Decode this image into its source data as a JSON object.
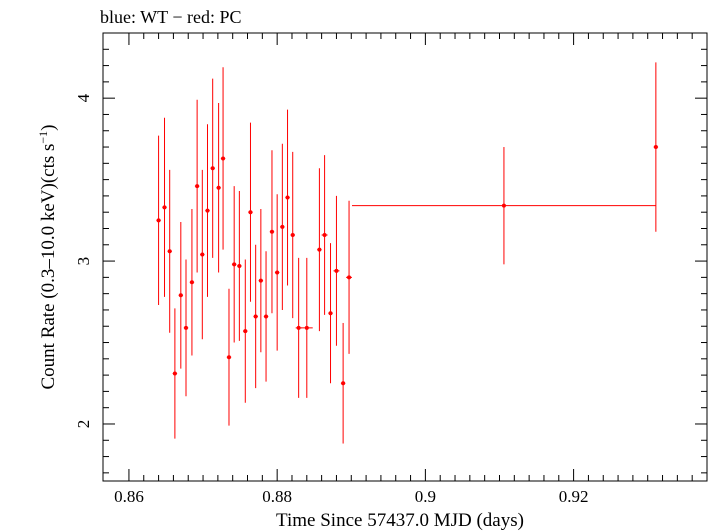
{
  "chart_data": {
    "type": "scatter",
    "title": "blue: WT − red: PC",
    "xlabel": "Time Since 57437.0 MJD (days)",
    "ylabel_main": "Count Rate (0.3–10.0 keV)(cts s",
    "ylabel_sup": "−1",
    "ylabel_close": ")",
    "xlim": [
      0.8565,
      0.938
    ],
    "ylim": [
      1.65,
      4.4
    ],
    "xticks": [
      0.86,
      0.88,
      0.9,
      0.92
    ],
    "xtick_labels": [
      "0.86",
      "0.88",
      "0.9",
      "0.92"
    ],
    "yticks": [
      2,
      3,
      4
    ],
    "ytick_labels": [
      "2",
      "3",
      "4"
    ],
    "grid": false,
    "series": [
      {
        "name": "PC",
        "color": "#ff0000",
        "points": [
          {
            "x": 0.864,
            "xerr": 0.0003,
            "y": 3.25,
            "yerr": 0.52
          },
          {
            "x": 0.8648,
            "xerr": 0.0003,
            "y": 3.33,
            "yerr": 0.55
          },
          {
            "x": 0.8655,
            "xerr": 0.0003,
            "y": 3.06,
            "yerr": 0.5
          },
          {
            "x": 0.8662,
            "xerr": 0.0003,
            "y": 2.31,
            "yerr": 0.4
          },
          {
            "x": 0.867,
            "xerr": 0.0003,
            "y": 2.79,
            "yerr": 0.45
          },
          {
            "x": 0.8677,
            "xerr": 0.0003,
            "y": 2.59,
            "yerr": 0.42
          },
          {
            "x": 0.8685,
            "xerr": 0.0003,
            "y": 2.87,
            "yerr": 0.45
          },
          {
            "x": 0.8692,
            "xerr": 0.0003,
            "y": 3.46,
            "yerr": 0.53
          },
          {
            "x": 0.8699,
            "xerr": 0.0003,
            "y": 3.04,
            "yerr": 0.52
          },
          {
            "x": 0.8706,
            "xerr": 0.0003,
            "y": 3.31,
            "yerr": 0.53
          },
          {
            "x": 0.8713,
            "xerr": 0.0003,
            "y": 3.57,
            "yerr": 0.55
          },
          {
            "x": 0.8721,
            "xerr": 0.0003,
            "y": 3.45,
            "yerr": 0.52
          },
          {
            "x": 0.8727,
            "xerr": 0.0003,
            "y": 3.63,
            "yerr": 0.56
          },
          {
            "x": 0.8735,
            "xerr": 0.0003,
            "y": 2.41,
            "yerr": 0.42
          },
          {
            "x": 0.8742,
            "xerr": 0.0003,
            "y": 2.98,
            "yerr": 0.48
          },
          {
            "x": 0.8749,
            "xerr": 0.0003,
            "y": 2.97,
            "yerr": 0.46
          },
          {
            "x": 0.8757,
            "xerr": 0.0003,
            "y": 2.57,
            "yerr": 0.44
          },
          {
            "x": 0.8764,
            "xerr": 0.0003,
            "y": 3.3,
            "yerr": 0.55
          },
          {
            "x": 0.8771,
            "xerr": 0.0003,
            "y": 2.66,
            "yerr": 0.44
          },
          {
            "x": 0.8778,
            "xerr": 0.0003,
            "y": 2.88,
            "yerr": 0.44
          },
          {
            "x": 0.8785,
            "xerr": 0.0003,
            "y": 2.66,
            "yerr": 0.4
          },
          {
            "x": 0.8793,
            "xerr": 0.0003,
            "y": 3.18,
            "yerr": 0.5
          },
          {
            "x": 0.88,
            "xerr": 0.0003,
            "y": 2.93,
            "yerr": 0.48
          },
          {
            "x": 0.8807,
            "xerr": 0.0003,
            "y": 3.21,
            "yerr": 0.51
          },
          {
            "x": 0.8814,
            "xerr": 0.0003,
            "y": 3.39,
            "yerr": 0.54
          },
          {
            "x": 0.8821,
            "xerr": 0.0003,
            "y": 3.16,
            "yerr": 0.51
          },
          {
            "x": 0.8829,
            "xerr": 0.0004,
            "y": 2.59,
            "yerr": 0.43
          },
          {
            "x": 0.884,
            "xerr": 0.0008,
            "y": 2.59,
            "yerr": 0.43
          },
          {
            "x": 0.8857,
            "xerr": 0.0003,
            "y": 3.07,
            "yerr": 0.5
          },
          {
            "x": 0.8864,
            "xerr": 0.0004,
            "y": 3.16,
            "yerr": 0.49
          },
          {
            "x": 0.8872,
            "xerr": 0.0003,
            "y": 2.68,
            "yerr": 0.43
          },
          {
            "x": 0.888,
            "xerr": 0.0004,
            "y": 2.94,
            "yerr": 0.46
          },
          {
            "x": 0.8889,
            "xerr": 0.0003,
            "y": 2.25,
            "yerr": 0.37
          },
          {
            "x": 0.8897,
            "xerr": 0.0004,
            "y": 2.9,
            "yerr": 0.47
          },
          {
            "x": 0.9106,
            "xerr": 0.0205,
            "y": 3.34,
            "yerr": 0.36
          },
          {
            "x": 0.9311,
            "xerr": 0.0003,
            "y": 3.7,
            "yerr": 0.52
          }
        ]
      }
    ]
  }
}
